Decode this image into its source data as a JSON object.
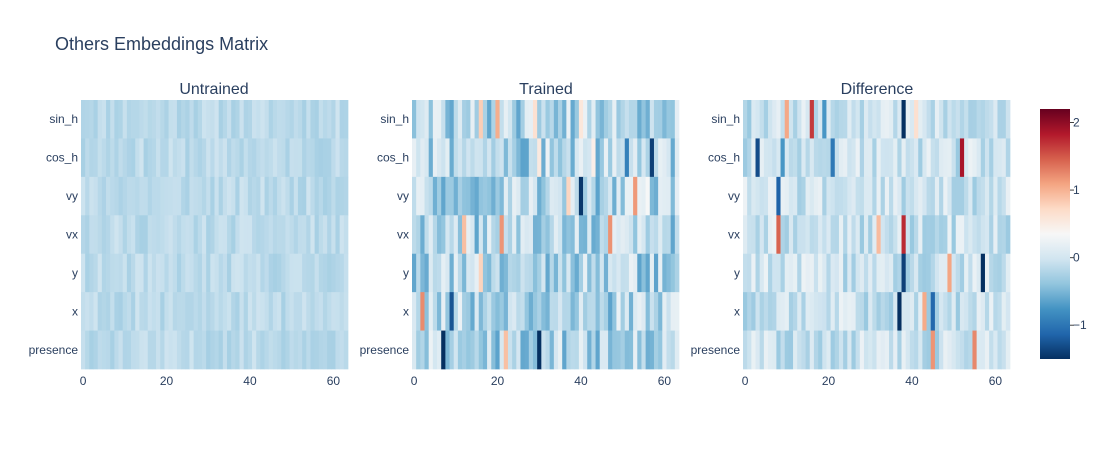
{
  "chart_data": {
    "type": "heatmap",
    "title": "Others Embeddings Matrix",
    "panels": [
      {
        "title": "Untrained",
        "seed": 11,
        "scale": 0.12,
        "bias": -0.15
      },
      {
        "title": "Trained",
        "seed": 29,
        "scale": 0.45,
        "bias": -0.2
      },
      {
        "title": "Difference",
        "seed": 47,
        "scale": 0.3,
        "bias": -0.05
      }
    ],
    "rows": [
      "sin_h",
      "cos_h",
      "vy",
      "vx",
      "y",
      "x",
      "presence"
    ],
    "columns": 64,
    "x_ticks": [
      0,
      20,
      40,
      60
    ],
    "x_range": [
      -0.5,
      63.5
    ],
    "colorscale": "RdBu",
    "zmin": -1.5,
    "zmax": 2.2,
    "colorbar_ticks": [
      -1,
      0,
      1,
      2
    ],
    "colorbar_tick_labels": [
      "−1",
      "0",
      "1",
      "2"
    ],
    "colors": {
      "low": "#053061",
      "mid": "#f7f7f7",
      "high": "#67001f",
      "text": "#2a3f5f"
    }
  }
}
